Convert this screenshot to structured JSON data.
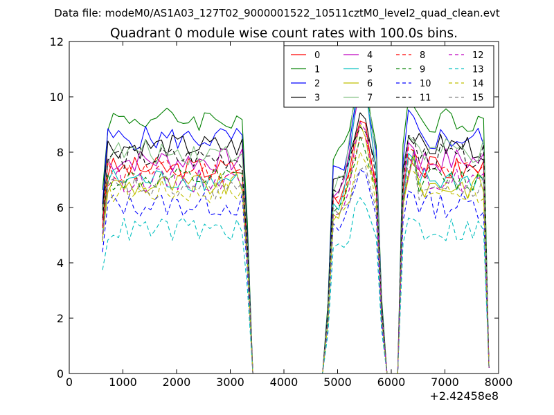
{
  "chart_data": {
    "type": "line",
    "suptitle": "Data file: modeM0/AS1A03_127T02_9000001522_10511cztM0_level2_quad_clean.evt",
    "title": "Quadrant 0 module wise count rates with 100.0s bins.",
    "xlabel": "",
    "ylabel": "",
    "x_offset_label": "+2.42458e8",
    "xlim": [
      0,
      8000
    ],
    "ylim": [
      0,
      12
    ],
    "xticks": [
      0,
      1000,
      2000,
      3000,
      4000,
      5000,
      6000,
      7000,
      8000
    ],
    "yticks": [
      0,
      2,
      4,
      6,
      8,
      10,
      12
    ],
    "grid": false,
    "legend_position": "top-right",
    "legend_columns": 4,
    "series": [
      {
        "name": "0",
        "color": "#ff0000",
        "dash": "solid",
        "level": 7.4,
        "peak": 9.3
      },
      {
        "name": "1",
        "color": "#008000",
        "dash": "solid",
        "level": 9.2,
        "peak": 10.6
      },
      {
        "name": "2",
        "color": "#0000ff",
        "dash": "solid",
        "level": 8.5,
        "peak": 10.3
      },
      {
        "name": "3",
        "color": "#000000",
        "dash": "solid",
        "level": 8.2,
        "peak": 9.5
      },
      {
        "name": "4",
        "color": "#bf00bf",
        "dash": "solid",
        "level": 7.7,
        "peak": 10.6
      },
      {
        "name": "5",
        "color": "#00bfbf",
        "dash": "solid",
        "level": 7.0,
        "peak": 10.9
      },
      {
        "name": "6",
        "color": "#bfbf00",
        "dash": "solid",
        "level": 6.8,
        "peak": 9.0
      },
      {
        "name": "7",
        "color": "#7fbf7f",
        "dash": "solid",
        "level": 8.0,
        "peak": 11.3
      },
      {
        "name": "8",
        "color": "#ff0000",
        "dash": "dashed",
        "level": 7.3,
        "peak": 8.8
      },
      {
        "name": "9",
        "color": "#008000",
        "dash": "dashed",
        "level": 7.0,
        "peak": 8.5
      },
      {
        "name": "10",
        "color": "#0000ff",
        "dash": "dashed",
        "level": 6.1,
        "peak": 7.4
      },
      {
        "name": "11",
        "color": "#000000",
        "dash": "dashed",
        "level": 7.8,
        "peak": 9.1
      },
      {
        "name": "12",
        "color": "#bf00bf",
        "dash": "dashed",
        "level": 7.0,
        "peak": 8.9
      },
      {
        "name": "13",
        "color": "#00bfbf",
        "dash": "dashed",
        "level": 5.2,
        "peak": 6.3
      },
      {
        "name": "14",
        "color": "#bfbf00",
        "dash": "dashed",
        "level": 6.6,
        "peak": 8.1
      },
      {
        "name": "15",
        "color": "#7f7f7f",
        "dash": "dashed",
        "level": 6.7,
        "peak": 7.6
      }
    ]
  }
}
